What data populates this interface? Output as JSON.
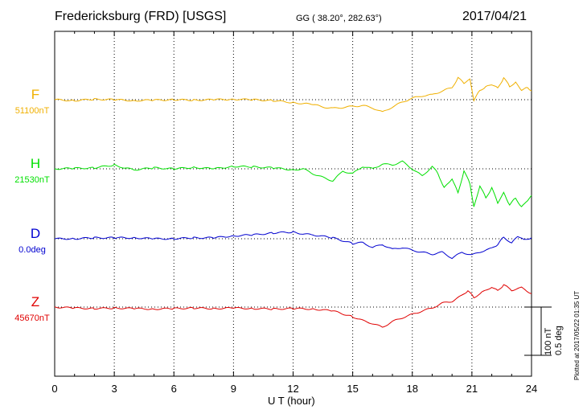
{
  "header": {
    "station": "Fredericksburg (FRD)  [USGS]",
    "coords": "GG ( 38.20°, 282.63°)",
    "date": "2017/04/21"
  },
  "footer": {
    "plotted": "Plotted at 2017/05/22 01:35 UT"
  },
  "scale_bar": {
    "nt": "100 nT",
    "deg": "0.5 deg"
  },
  "chart_data": {
    "type": "line",
    "xlabel": "U T (hour)",
    "xlim": [
      0,
      24
    ],
    "xticks": [
      0,
      3,
      6,
      9,
      12,
      15,
      18,
      21,
      24
    ],
    "xtick_labels": [
      "0",
      "3",
      "6",
      "9",
      "12",
      "15",
      "18",
      "21",
      "24"
    ],
    "grid": "dotted vertical at every 3 hours",
    "units_per_division": "100 nT / 0.5 deg",
    "series": [
      {
        "name": "F",
        "baseline_label": "51100nT",
        "baseline": 51100,
        "unit": "nT",
        "color": "#f0b000",
        "x": [
          0,
          1,
          2,
          3,
          4,
          5,
          6,
          7,
          8,
          9,
          10,
          11,
          12,
          13,
          13.5,
          14,
          14.5,
          15,
          15.5,
          16,
          16.5,
          17,
          17.5,
          18,
          18.5,
          19,
          19.5,
          20,
          20.3,
          20.6,
          20.9,
          21.1,
          21.4,
          21.7,
          22,
          22.3,
          22.6,
          22.9,
          23.2,
          23.5,
          23.8,
          24
        ],
        "y": [
          51100,
          51098,
          51101,
          51100,
          51098,
          51099,
          51100,
          51099,
          51100,
          51101,
          51100,
          51098,
          51094,
          51090,
          51085,
          51082,
          51084,
          51086,
          51088,
          51083,
          51074,
          51085,
          51095,
          51103,
          51108,
          51110,
          51118,
          51125,
          51145,
          51135,
          51142,
          51098,
          51120,
          51126,
          51132,
          51124,
          51145,
          51128,
          51135,
          51120,
          51125,
          51118
        ]
      },
      {
        "name": "H",
        "baseline_label": "21530nT",
        "baseline": 21530,
        "unit": "nT",
        "color": "#00e000",
        "x": [
          0,
          1,
          2,
          3,
          3.5,
          4,
          5,
          6,
          7,
          8,
          9,
          10,
          11,
          12,
          12.5,
          13,
          13.5,
          14,
          14.5,
          15,
          15.5,
          16,
          16.5,
          17,
          17.5,
          18,
          18.5,
          19,
          19.3,
          19.6,
          20,
          20.3,
          20.6,
          20.9,
          21.1,
          21.4,
          21.7,
          22,
          22.3,
          22.6,
          22.9,
          23.2,
          23.5,
          23.8,
          24
        ],
        "y": [
          21530,
          21531,
          21532,
          21538,
          21532,
          21528,
          21532,
          21530,
          21533,
          21530,
          21535,
          21534,
          21532,
          21528,
          21530,
          21520,
          21512,
          21505,
          21525,
          21520,
          21535,
          21530,
          21540,
          21538,
          21545,
          21530,
          21515,
          21535,
          21520,
          21490,
          21510,
          21480,
          21525,
          21500,
          21450,
          21495,
          21470,
          21490,
          21460,
          21480,
          21455,
          21470,
          21450,
          21465,
          21475
        ]
      },
      {
        "name": "D",
        "baseline_label": "0.0deg",
        "baseline": 0.0,
        "unit": "deg",
        "color": "#0000d0",
        "x": [
          0,
          1,
          2,
          3,
          4,
          5,
          6,
          7,
          8,
          9,
          10,
          11,
          12,
          12.5,
          13,
          14,
          15,
          15.5,
          16,
          16.5,
          17,
          17.5,
          18,
          18.5,
          19,
          19.5,
          20,
          20.5,
          21,
          21.5,
          22,
          22.3,
          22.6,
          23,
          23.3,
          23.6,
          24
        ],
        "y": [
          0.0,
          0.0,
          0.01,
          0.01,
          0.01,
          0.0,
          0.0,
          0.01,
          0.01,
          0.03,
          0.04,
          0.06,
          0.07,
          0.05,
          0.04,
          0.01,
          -0.05,
          -0.04,
          -0.09,
          -0.06,
          -0.11,
          -0.09,
          -0.12,
          -0.14,
          -0.16,
          -0.14,
          -0.2,
          -0.14,
          -0.17,
          -0.13,
          -0.1,
          -0.06,
          0.02,
          -0.05,
          0.03,
          -0.01,
          0.01
        ]
      },
      {
        "name": "Z",
        "baseline_label": "45670nT",
        "baseline": 45670,
        "unit": "nT",
        "color": "#e00000",
        "x": [
          0,
          1,
          2,
          3,
          4,
          5,
          6,
          7,
          8,
          9,
          10,
          11,
          12,
          13,
          14,
          15,
          15.5,
          16,
          16.5,
          17,
          17.5,
          18,
          18.5,
          19,
          19.5,
          20,
          20.5,
          20.8,
          21.1,
          21.5,
          22,
          22.3,
          22.6,
          23,
          23.5,
          24
        ],
        "y": [
          45670,
          45668,
          45667,
          45668,
          45667,
          45666,
          45667,
          45668,
          45667,
          45668,
          45667,
          45666,
          45667,
          45666,
          45662,
          45650,
          45642,
          45636,
          45628,
          45640,
          45648,
          45655,
          45662,
          45668,
          45678,
          45682,
          45694,
          45704,
          45690,
          45700,
          45712,
          45704,
          45716,
          45705,
          45710,
          45698
        ]
      }
    ]
  }
}
